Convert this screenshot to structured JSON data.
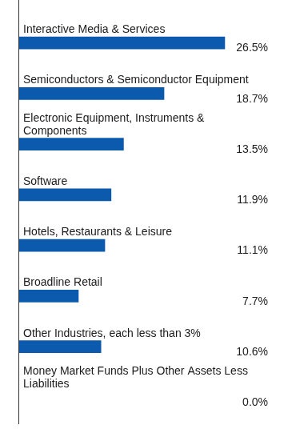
{
  "chart_data": {
    "type": "bar",
    "orientation": "horizontal",
    "categories": [
      "Interactive Media & Services",
      "Semiconductors & Semiconductor Equipment",
      "Electronic Equipment, Instruments & Components",
      "Software",
      "Hotels, Restaurants & Leisure",
      "Broadline Retail",
      "Other Industries, each less than 3%",
      "Money Market Funds Plus Other Assets Less Liabilities"
    ],
    "values": [
      26.5,
      18.7,
      13.5,
      11.9,
      11.1,
      7.7,
      10.6,
      0.0
    ],
    "value_labels": [
      "26.5%",
      "18.7%",
      "13.5%",
      "11.9%",
      "11.1%",
      "7.7%",
      "10.6%",
      "0.0%"
    ],
    "color": "#0b5aae",
    "data_labels": true,
    "tick_labels": false,
    "grid": false
  }
}
